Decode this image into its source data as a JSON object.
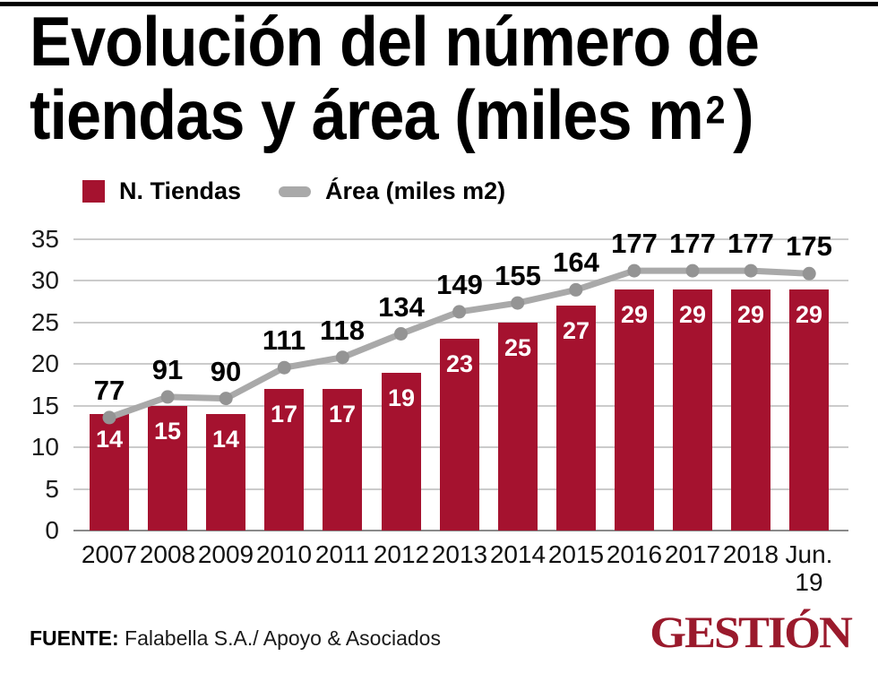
{
  "title": {
    "line1": "Evolución del número de",
    "line2_prefix": "tiendas y área (miles m",
    "superscript": "2",
    "line2_suffix": ")"
  },
  "legend": {
    "items": [
      {
        "label": "N. Tiendas"
      },
      {
        "label": "Área (miles m2)"
      }
    ]
  },
  "chart_data": {
    "type": "bar+line",
    "title": "Evolución del número de tiendas y área (miles m2)",
    "categories": [
      "2007",
      "2008",
      "2009",
      "2010",
      "2011",
      "2012",
      "2013",
      "2014",
      "2015",
      "2016",
      "2017",
      "2018",
      "Jun.\n19"
    ],
    "series": [
      {
        "name": "N. Tiendas",
        "type": "bar",
        "values": [
          14,
          15,
          14,
          17,
          17,
          19,
          23,
          25,
          27,
          29,
          29,
          29,
          29
        ]
      },
      {
        "name": "Área (miles m2)",
        "type": "line",
        "values": [
          77,
          91,
          90,
          111,
          118,
          134,
          149,
          155,
          164,
          177,
          177,
          177,
          175
        ]
      }
    ],
    "left_axis": {
      "ticks": [
        0,
        5,
        10,
        15,
        20,
        25,
        30,
        35
      ],
      "range": [
        0,
        35
      ],
      "grid": true
    },
    "legend_position": "top-left",
    "bar_value_labels": "inside-top",
    "line_value_labels": "above"
  },
  "colors": {
    "top_rule": "#000000",
    "bar": "#A5122F",
    "bar_label": "#FFFFFF",
    "line": "#A9A9A9",
    "marker": "#949494",
    "grid": "#CBCBCB",
    "axis_line": "#8A8A8A",
    "logo": "#9A1A2C"
  },
  "footer": {
    "source_label": "FUENTE:",
    "source_text": " Falabella S.A./ Apoyo & Asociados",
    "logo_text": "GESTIÓN"
  }
}
